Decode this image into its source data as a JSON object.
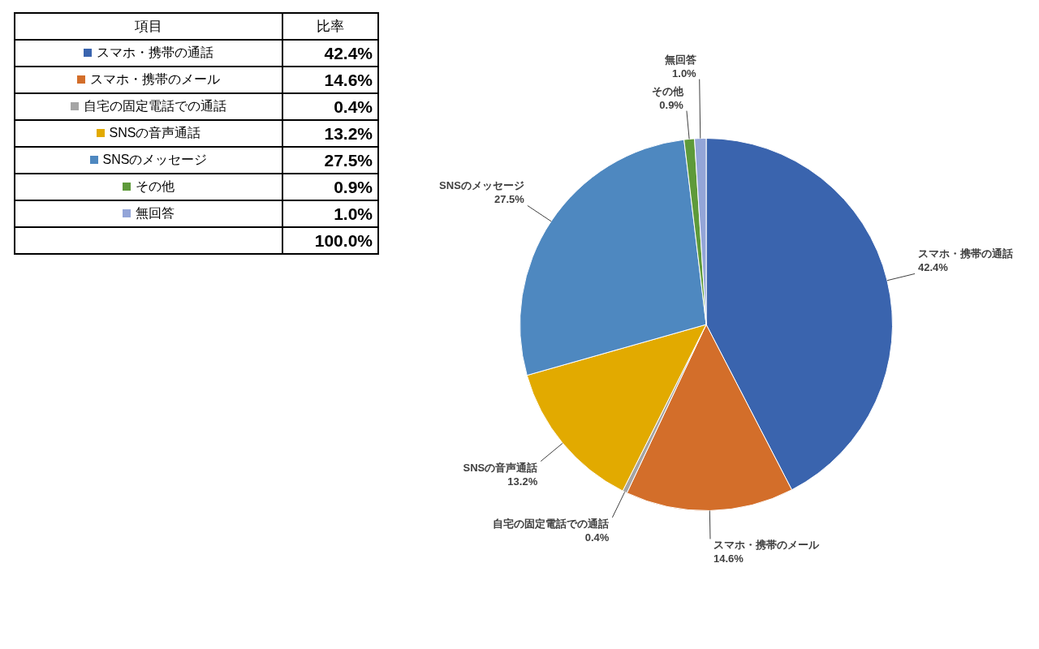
{
  "chart_data": {
    "type": "pie",
    "categories": [
      "スマホ・携帯の通話",
      "スマホ・携帯のメール",
      "自宅の固定電話での通話",
      "SNSの音声通話",
      "SNSのメッセージ",
      "その他",
      "無回答"
    ],
    "values": [
      42.4,
      14.6,
      0.4,
      13.2,
      27.5,
      0.9,
      1.0
    ],
    "value_labels": [
      "42.4%",
      "14.6%",
      "0.4%",
      "13.2%",
      "27.5%",
      "0.9%",
      "1.0%"
    ],
    "colors": [
      "#3a64ae",
      "#d36e2a",
      "#a5a5a5",
      "#e2aa00",
      "#4e88c0",
      "#5e9a3a",
      "#93a5d8"
    ],
    "totals": [
      "100.0%"
    ],
    "annotations": [
      "項目",
      "比率"
    ],
    "legend": "left"
  }
}
